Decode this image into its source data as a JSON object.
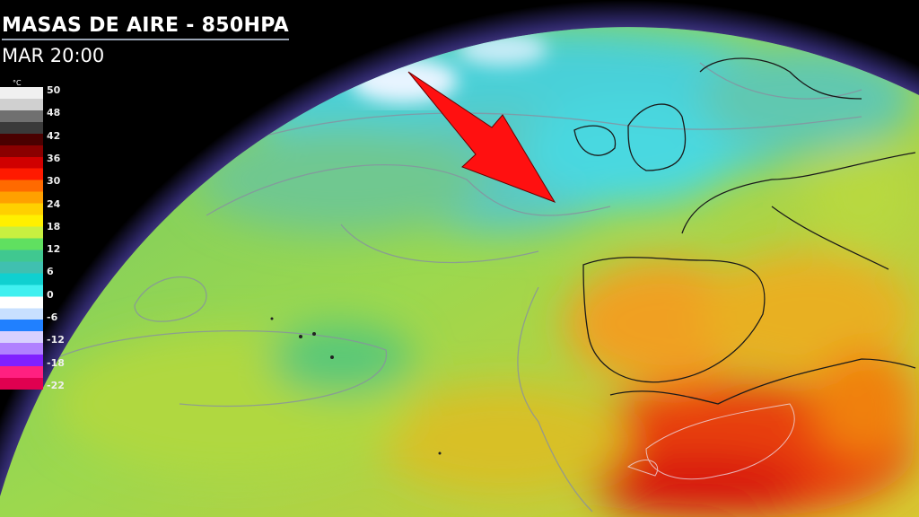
{
  "header": {
    "title": "MASAS DE AIRE - 850HPA",
    "time": "MAR 20:00"
  },
  "legend": {
    "unit": "°C",
    "labels": [
      "50",
      "48",
      "42",
      "36",
      "30",
      "24",
      "18",
      "12",
      "6",
      "0",
      "-6",
      "-12",
      "-18",
      "-22"
    ],
    "colors": [
      "#f0f0f0",
      "#d0d0d0",
      "#707070",
      "#3a3a3a",
      "#4a0000",
      "#8a0000",
      "#d00000",
      "#ff1a00",
      "#ff6a00",
      "#ffa000",
      "#ffd000",
      "#fff000",
      "#c8f040",
      "#60e060",
      "#40c890",
      "#40c0b0",
      "#10d0d0",
      "#40f0f0",
      "#ffffff",
      "#c8e0ff",
      "#2080ff",
      "#d8d0ff",
      "#b080ff",
      "#8020ff",
      "#ff2080",
      "#e00050"
    ]
  },
  "annotation": {
    "arrow_color": "#ff1010"
  }
}
